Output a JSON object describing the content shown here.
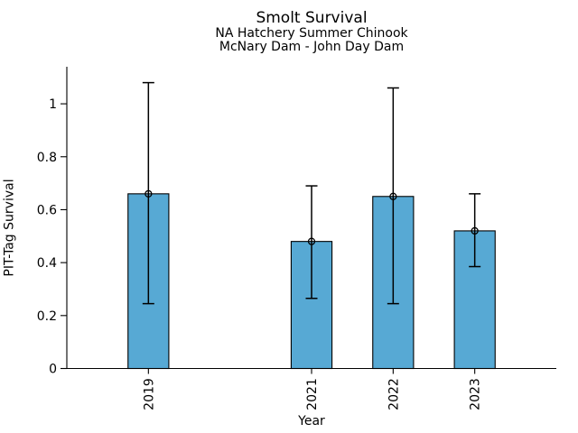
{
  "chart_data": {
    "type": "bar",
    "title": "Smolt Survival",
    "subtitle_lines": [
      "NA Hatchery Summer Chinook",
      "McNary Dam - John Day Dam"
    ],
    "xlabel": "Year",
    "ylabel": "PIT-Tag Survival",
    "categories": [
      "2019",
      "2021",
      "2022",
      "2023"
    ],
    "x_values": [
      2019,
      2021,
      2022,
      2023
    ],
    "values": [
      0.66,
      0.48,
      0.65,
      0.52
    ],
    "error_low": [
      0.245,
      0.265,
      0.245,
      0.385
    ],
    "error_high": [
      1.08,
      0.69,
      1.06,
      0.66
    ],
    "xlim": [
      2018,
      2024
    ],
    "ylim": [
      0,
      1.14
    ],
    "yticks": [
      0,
      0.2,
      0.4,
      0.6,
      0.8,
      1
    ],
    "ytick_labels": [
      "0",
      "0.2",
      "0.4",
      "0.6",
      "0.8",
      "1"
    ],
    "bar_width_x": 0.5,
    "bar_fill_color": "#57A9D4",
    "bar_edge_color": "#000000",
    "errorbar_color": "#000000",
    "marker": "open-circle",
    "marker_edge_color": "#000000",
    "grid": false,
    "legend": "none",
    "background_color": "#FFFFFF",
    "spines": [
      "left",
      "bottom"
    ]
  }
}
